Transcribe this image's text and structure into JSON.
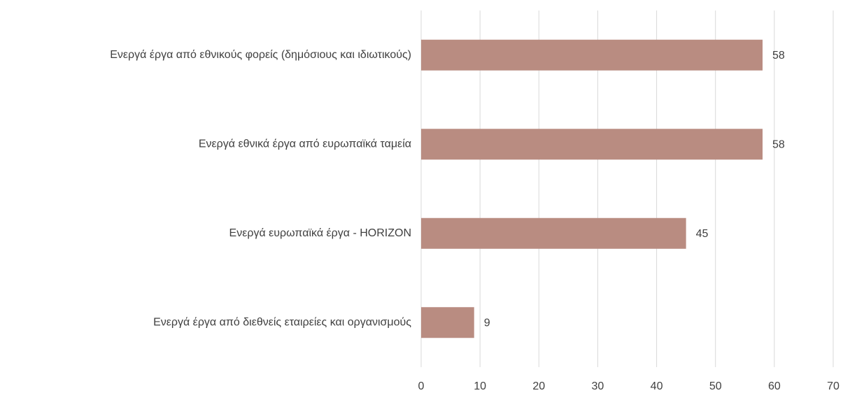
{
  "chart_data": {
    "type": "bar",
    "orientation": "horizontal",
    "categories": [
      "Ενεργά έργα από εθνικούς φορείς (δημόσιους και ιδιωτικούς)",
      "Ενεργά εθνικά έργα από ευρωπαϊκά ταμεία",
      "Ενεργά ευρωπαϊκά έργα - HORIZON",
      "Ενεργά έργα από διεθνείς εταιρείες και οργανισμούς"
    ],
    "values": [
      58,
      58,
      45,
      9
    ],
    "color": "#b98c81",
    "xlim": [
      0,
      70
    ],
    "xticks": [
      0,
      10,
      20,
      30,
      40,
      50,
      60,
      70
    ],
    "grid": true,
    "data_labels": true
  }
}
